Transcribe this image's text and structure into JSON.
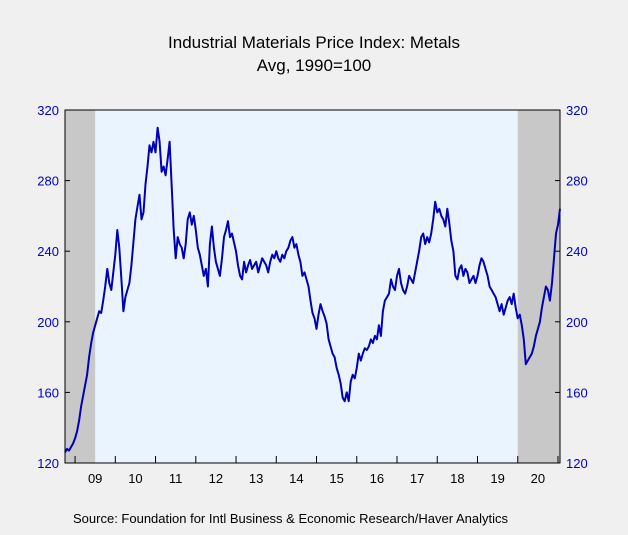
{
  "chart_data": {
    "type": "line",
    "title": "Industrial Materials Price Index: Metals",
    "subtitle": "Avg, 1990=100",
    "source": "Source:  Foundation for Intl Business & Economic Research/Haver Analytics",
    "ylim": [
      120,
      320
    ],
    "y_ticks": [
      "120",
      "160",
      "200",
      "240",
      "280",
      "320"
    ],
    "x_range": [
      2008.75,
      2021.05
    ],
    "x_tick_labels": [
      "09",
      "10",
      "11",
      "12",
      "13",
      "14",
      "15",
      "16",
      "17",
      "18",
      "19",
      "20"
    ],
    "recessions": [
      [
        2008.75,
        2009.5
      ],
      [
        2020.0,
        2021.05
      ]
    ],
    "grid": false,
    "colors": {
      "line": "#0000b4",
      "plot_bg": "#eaf4ff",
      "recession": "#c8c8c8",
      "page_bg": "#f0f0f0"
    },
    "series": [
      {
        "points": [
          [
            2008.75,
            126
          ],
          [
            2008.8,
            128
          ],
          [
            2008.85,
            127
          ],
          [
            2008.9,
            129
          ],
          [
            2008.95,
            131
          ],
          [
            2009.0,
            134
          ],
          [
            2009.05,
            138
          ],
          [
            2009.1,
            144
          ],
          [
            2009.15,
            152
          ],
          [
            2009.2,
            158
          ],
          [
            2009.25,
            164
          ],
          [
            2009.3,
            170
          ],
          [
            2009.35,
            180
          ],
          [
            2009.4,
            188
          ],
          [
            2009.45,
            194
          ],
          [
            2009.5,
            198
          ],
          [
            2009.55,
            202
          ],
          [
            2009.6,
            206
          ],
          [
            2009.65,
            205
          ],
          [
            2009.7,
            212
          ],
          [
            2009.75,
            220
          ],
          [
            2009.8,
            230
          ],
          [
            2009.85,
            222
          ],
          [
            2009.9,
            218
          ],
          [
            2009.95,
            228
          ],
          [
            2010.0,
            238
          ],
          [
            2010.05,
            252
          ],
          [
            2010.1,
            242
          ],
          [
            2010.15,
            225
          ],
          [
            2010.2,
            206
          ],
          [
            2010.25,
            214
          ],
          [
            2010.3,
            218
          ],
          [
            2010.35,
            222
          ],
          [
            2010.4,
            232
          ],
          [
            2010.45,
            245
          ],
          [
            2010.5,
            258
          ],
          [
            2010.55,
            265
          ],
          [
            2010.6,
            272
          ],
          [
            2010.65,
            258
          ],
          [
            2010.7,
            262
          ],
          [
            2010.75,
            278
          ],
          [
            2010.8,
            288
          ],
          [
            2010.85,
            300
          ],
          [
            2010.9,
            296
          ],
          [
            2010.95,
            302
          ],
          [
            2011.0,
            296
          ],
          [
            2011.05,
            310
          ],
          [
            2011.1,
            302
          ],
          [
            2011.15,
            285
          ],
          [
            2011.2,
            288
          ],
          [
            2011.25,
            283
          ],
          [
            2011.3,
            292
          ],
          [
            2011.35,
            302
          ],
          [
            2011.4,
            278
          ],
          [
            2011.45,
            252
          ],
          [
            2011.5,
            236
          ],
          [
            2011.55,
            248
          ],
          [
            2011.6,
            244
          ],
          [
            2011.65,
            242
          ],
          [
            2011.7,
            236
          ],
          [
            2011.75,
            244
          ],
          [
            2011.8,
            258
          ],
          [
            2011.85,
            262
          ],
          [
            2011.9,
            255
          ],
          [
            2011.95,
            260
          ],
          [
            2012.0,
            252
          ],
          [
            2012.05,
            242
          ],
          [
            2012.1,
            238
          ],
          [
            2012.15,
            232
          ],
          [
            2012.2,
            226
          ],
          [
            2012.25,
            230
          ],
          [
            2012.3,
            220
          ],
          [
            2012.35,
            244
          ],
          [
            2012.4,
            254
          ],
          [
            2012.45,
            242
          ],
          [
            2012.5,
            234
          ],
          [
            2012.55,
            230
          ],
          [
            2012.6,
            226
          ],
          [
            2012.65,
            236
          ],
          [
            2012.7,
            248
          ],
          [
            2012.75,
            252
          ],
          [
            2012.8,
            257
          ],
          [
            2012.85,
            248
          ],
          [
            2012.9,
            250
          ],
          [
            2012.95,
            245
          ],
          [
            2013.0,
            240
          ],
          [
            2013.05,
            232
          ],
          [
            2013.1,
            226
          ],
          [
            2013.15,
            224
          ],
          [
            2013.2,
            234
          ],
          [
            2013.25,
            228
          ],
          [
            2013.3,
            232
          ],
          [
            2013.35,
            235
          ],
          [
            2013.4,
            230
          ],
          [
            2013.45,
            232
          ],
          [
            2013.5,
            234
          ],
          [
            2013.55,
            228
          ],
          [
            2013.6,
            232
          ],
          [
            2013.65,
            236
          ],
          [
            2013.7,
            234
          ],
          [
            2013.75,
            232
          ],
          [
            2013.8,
            228
          ],
          [
            2013.85,
            234
          ],
          [
            2013.9,
            238
          ],
          [
            2013.95,
            236
          ],
          [
            2014.0,
            240
          ],
          [
            2014.05,
            236
          ],
          [
            2014.1,
            234
          ],
          [
            2014.15,
            238
          ],
          [
            2014.2,
            236
          ],
          [
            2014.25,
            240
          ],
          [
            2014.3,
            242
          ],
          [
            2014.35,
            246
          ],
          [
            2014.4,
            248
          ],
          [
            2014.45,
            242
          ],
          [
            2014.5,
            244
          ],
          [
            2014.55,
            238
          ],
          [
            2014.6,
            234
          ],
          [
            2014.65,
            226
          ],
          [
            2014.7,
            228
          ],
          [
            2014.75,
            224
          ],
          [
            2014.8,
            220
          ],
          [
            2014.85,
            212
          ],
          [
            2014.9,
            205
          ],
          [
            2014.95,
            202
          ],
          [
            2015.0,
            196
          ],
          [
            2015.05,
            204
          ],
          [
            2015.1,
            210
          ],
          [
            2015.15,
            206
          ],
          [
            2015.2,
            203
          ],
          [
            2015.25,
            199
          ],
          [
            2015.3,
            190
          ],
          [
            2015.35,
            186
          ],
          [
            2015.4,
            182
          ],
          [
            2015.45,
            180
          ],
          [
            2015.5,
            174
          ],
          [
            2015.55,
            170
          ],
          [
            2015.6,
            165
          ],
          [
            2015.65,
            157
          ],
          [
            2015.7,
            155
          ],
          [
            2015.75,
            160
          ],
          [
            2015.8,
            155
          ],
          [
            2015.85,
            166
          ],
          [
            2015.9,
            170
          ],
          [
            2015.95,
            168
          ],
          [
            2016.0,
            174
          ],
          [
            2016.05,
            182
          ],
          [
            2016.1,
            178
          ],
          [
            2016.15,
            182
          ],
          [
            2016.2,
            185
          ],
          [
            2016.25,
            184
          ],
          [
            2016.3,
            186
          ],
          [
            2016.35,
            190
          ],
          [
            2016.4,
            188
          ],
          [
            2016.45,
            192
          ],
          [
            2016.5,
            190
          ],
          [
            2016.55,
            198
          ],
          [
            2016.6,
            192
          ],
          [
            2016.65,
            206
          ],
          [
            2016.7,
            212
          ],
          [
            2016.75,
            214
          ],
          [
            2016.8,
            216
          ],
          [
            2016.85,
            224
          ],
          [
            2016.9,
            220
          ],
          [
            2016.95,
            218
          ],
          [
            2017.0,
            226
          ],
          [
            2017.05,
            230
          ],
          [
            2017.1,
            222
          ],
          [
            2017.15,
            218
          ],
          [
            2017.2,
            216
          ],
          [
            2017.25,
            220
          ],
          [
            2017.3,
            226
          ],
          [
            2017.35,
            224
          ],
          [
            2017.4,
            222
          ],
          [
            2017.45,
            228
          ],
          [
            2017.5,
            234
          ],
          [
            2017.55,
            240
          ],
          [
            2017.6,
            248
          ],
          [
            2017.65,
            250
          ],
          [
            2017.7,
            244
          ],
          [
            2017.75,
            248
          ],
          [
            2017.8,
            245
          ],
          [
            2017.85,
            250
          ],
          [
            2017.9,
            258
          ],
          [
            2017.95,
            268
          ],
          [
            2018.0,
            262
          ],
          [
            2018.05,
            264
          ],
          [
            2018.1,
            260
          ],
          [
            2018.15,
            258
          ],
          [
            2018.2,
            254
          ],
          [
            2018.25,
            264
          ],
          [
            2018.3,
            256
          ],
          [
            2018.35,
            246
          ],
          [
            2018.4,
            240
          ],
          [
            2018.45,
            226
          ],
          [
            2018.5,
            224
          ],
          [
            2018.55,
            230
          ],
          [
            2018.6,
            232
          ],
          [
            2018.65,
            226
          ],
          [
            2018.7,
            230
          ],
          [
            2018.75,
            228
          ],
          [
            2018.8,
            222
          ],
          [
            2018.85,
            224
          ],
          [
            2018.9,
            226
          ],
          [
            2018.95,
            222
          ],
          [
            2019.0,
            226
          ],
          [
            2019.05,
            232
          ],
          [
            2019.1,
            236
          ],
          [
            2019.15,
            234
          ],
          [
            2019.2,
            230
          ],
          [
            2019.25,
            226
          ],
          [
            2019.3,
            220
          ],
          [
            2019.35,
            218
          ],
          [
            2019.4,
            216
          ],
          [
            2019.45,
            214
          ],
          [
            2019.5,
            210
          ],
          [
            2019.55,
            206
          ],
          [
            2019.6,
            210
          ],
          [
            2019.65,
            204
          ],
          [
            2019.7,
            208
          ],
          [
            2019.75,
            212
          ],
          [
            2019.8,
            214
          ],
          [
            2019.85,
            210
          ],
          [
            2019.9,
            216
          ],
          [
            2019.95,
            208
          ],
          [
            2020.0,
            202
          ],
          [
            2020.05,
            204
          ],
          [
            2020.1,
            198
          ],
          [
            2020.15,
            190
          ],
          [
            2020.2,
            176
          ],
          [
            2020.25,
            178
          ],
          [
            2020.3,
            180
          ],
          [
            2020.35,
            182
          ],
          [
            2020.4,
            186
          ],
          [
            2020.45,
            192
          ],
          [
            2020.5,
            196
          ],
          [
            2020.55,
            200
          ],
          [
            2020.6,
            208
          ],
          [
            2020.65,
            214
          ],
          [
            2020.7,
            220
          ],
          [
            2020.75,
            218
          ],
          [
            2020.8,
            212
          ],
          [
            2020.85,
            222
          ],
          [
            2020.9,
            236
          ],
          [
            2020.95,
            250
          ],
          [
            2021.0,
            255
          ],
          [
            2021.05,
            264
          ]
        ]
      }
    ]
  }
}
